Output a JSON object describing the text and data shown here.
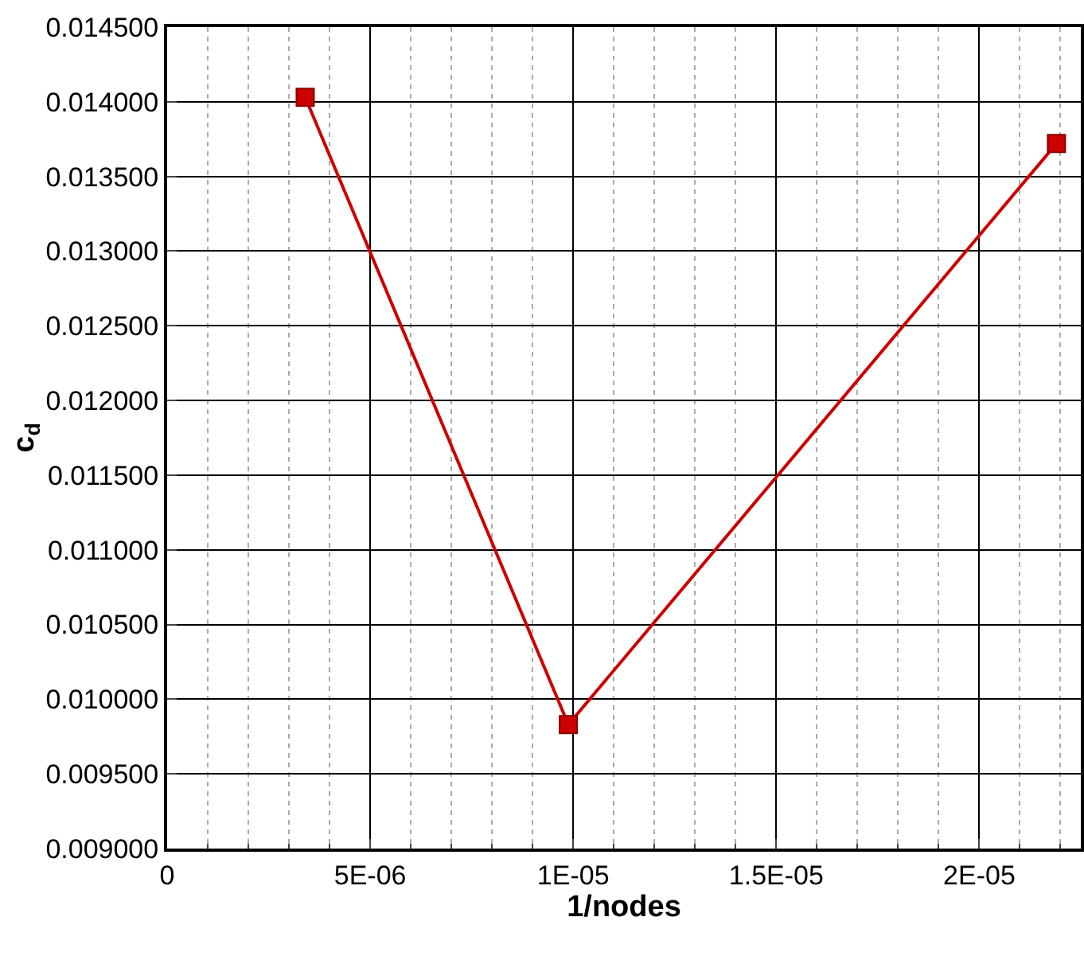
{
  "chart_data": {
    "type": "line",
    "xlabel": "1/nodes",
    "ylabel": "c$_{d}$",
    "x": [
      3.4e-06,
      9.88e-06,
      2.19e-05
    ],
    "series": [
      {
        "color": "#cc0000",
        "values": [
          0.01403,
          0.00983,
          0.01372
        ]
      }
    ],
    "xlim": [
      0,
      2.25e-05
    ],
    "xticks": [
      0,
      {
        "value": 5e-06,
        "label": "5E-06"
      },
      {
        "value": 1e-05,
        "label": "1E-05"
      },
      {
        "value": 1.5e-05,
        "label": "1.5E-05"
      },
      {
        "value": 2e-05,
        "label": "2E-05"
      }
    ],
    "ylim": [
      0.009,
      0.0145
    ],
    "yticks": [
      {
        "value": 0.009,
        "label": "0.009000"
      },
      {
        "value": 0.0095,
        "label": "0.009500"
      },
      {
        "value": 0.01,
        "label": "0.010000"
      },
      {
        "value": 0.0105,
        "label": "0.010500"
      },
      {
        "value": 0.011,
        "label": "0.011000"
      },
      {
        "value": 0.0115,
        "label": "0.011500"
      },
      {
        "value": 0.012,
        "label": "0.012000"
      },
      {
        "value": 0.0125,
        "label": "0.012500"
      },
      {
        "value": 0.013,
        "label": "0.013000"
      },
      {
        "value": 0.0135,
        "label": "0.013500"
      },
      {
        "value": 0.014,
        "label": "0.014000"
      },
      {
        "value": 0.0145,
        "label": "0.014500"
      }
    ],
    "grid": true,
    "marker": "square",
    "line_style": "solid"
  }
}
